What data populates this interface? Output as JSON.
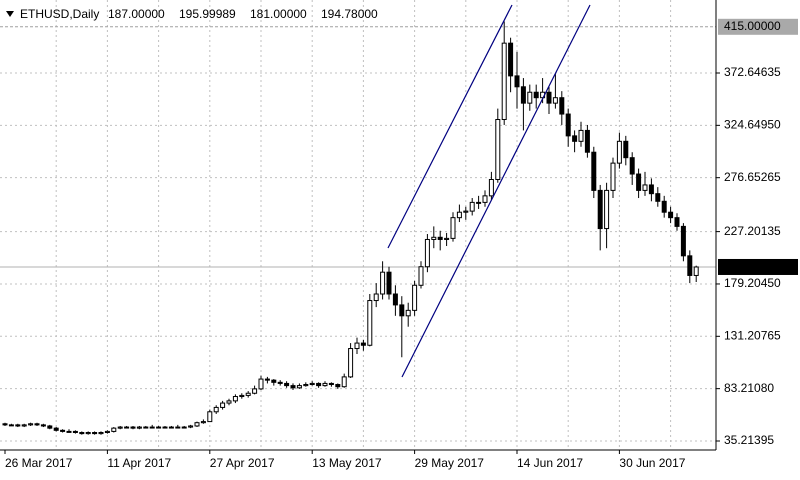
{
  "chart_data": {
    "type": "candlestick",
    "header": {
      "symbol": "ETHUSD,Daily",
      "ohlc_labels": [
        "187.00000",
        "195.99989",
        "181.00000",
        "194.78000"
      ]
    },
    "categories": [
      "26 Mar 2017",
      null,
      null,
      null,
      null,
      null,
      null,
      null,
      null,
      null,
      null,
      null,
      null,
      null,
      null,
      null,
      "11 Apr 2017",
      null,
      null,
      null,
      null,
      null,
      null,
      null,
      null,
      null,
      null,
      null,
      null,
      null,
      null,
      null,
      "27 Apr 2017",
      null,
      null,
      null,
      null,
      null,
      null,
      null,
      null,
      null,
      null,
      null,
      null,
      null,
      null,
      null,
      "13 May 2017",
      null,
      null,
      null,
      null,
      null,
      null,
      null,
      null,
      null,
      null,
      null,
      null,
      null,
      null,
      null,
      "29 May 2017",
      null,
      null,
      null,
      null,
      null,
      null,
      null,
      null,
      null,
      null,
      null,
      null,
      null,
      null,
      null,
      "14 Jun 2017",
      null,
      null,
      null,
      null,
      null,
      null,
      null,
      null,
      null,
      null,
      null,
      null,
      null,
      null,
      null,
      "30 Jun 2017",
      null,
      null,
      null,
      null,
      null,
      null,
      null,
      null,
      null,
      null,
      null,
      null
    ],
    "ohlc": [
      [
        51,
        52,
        49,
        50
      ],
      [
        50,
        51,
        49,
        50
      ],
      [
        50,
        51,
        48,
        49
      ],
      [
        49,
        51,
        48,
        50
      ],
      [
        50,
        52,
        49,
        51
      ],
      [
        51,
        52,
        49,
        50
      ],
      [
        50,
        51,
        48,
        49
      ],
      [
        49,
        50,
        46,
        47
      ],
      [
        47,
        48,
        44,
        45
      ],
      [
        45,
        46,
        43,
        44
      ],
      [
        44,
        46,
        43,
        44
      ],
      [
        44,
        45,
        42,
        43
      ],
      [
        43,
        44,
        41,
        42
      ],
      [
        42,
        44,
        41,
        43
      ],
      [
        43,
        44,
        41,
        42
      ],
      [
        42,
        44,
        41,
        43
      ],
      [
        43,
        45,
        42,
        44
      ],
      [
        44,
        48,
        43,
        47
      ],
      [
        47,
        49,
        46,
        48
      ],
      [
        48,
        49,
        47,
        48
      ],
      [
        48,
        49,
        46,
        47
      ],
      [
        47,
        49,
        46,
        48
      ],
      [
        48,
        49,
        47,
        48
      ],
      [
        48,
        50,
        47,
        48
      ],
      [
        48,
        49,
        47,
        48
      ],
      [
        48,
        49,
        47,
        48
      ],
      [
        48,
        49,
        47,
        48
      ],
      [
        48,
        50,
        47,
        48
      ],
      [
        48,
        49,
        47,
        48
      ],
      [
        48,
        50,
        47,
        49
      ],
      [
        49,
        53,
        48,
        52
      ],
      [
        52,
        55,
        51,
        53
      ],
      [
        53,
        64,
        53,
        62
      ],
      [
        62,
        68,
        60,
        66
      ],
      [
        66,
        72,
        64,
        70
      ],
      [
        70,
        74,
        68,
        72
      ],
      [
        72,
        78,
        70,
        76
      ],
      [
        76,
        79,
        74,
        77
      ],
      [
        77,
        81,
        75,
        79
      ],
      [
        79,
        86,
        78,
        83
      ],
      [
        83,
        95,
        82,
        92
      ],
      [
        92,
        94,
        88,
        91
      ],
      [
        91,
        92,
        86,
        89
      ],
      [
        89,
        91,
        86,
        88
      ],
      [
        88,
        90,
        84,
        86
      ],
      [
        86,
        88,
        82,
        84
      ],
      [
        84,
        88,
        83,
        86
      ],
      [
        86,
        89,
        85,
        87
      ],
      [
        87,
        90,
        86,
        88
      ],
      [
        88,
        89,
        84,
        86
      ],
      [
        86,
        90,
        85,
        88
      ],
      [
        88,
        89,
        85,
        87
      ],
      [
        87,
        88,
        83,
        85
      ],
      [
        85,
        97,
        84,
        94
      ],
      [
        94,
        125,
        93,
        120
      ],
      [
        120,
        130,
        115,
        125
      ],
      [
        125,
        128,
        118,
        123
      ],
      [
        123,
        170,
        122,
        164
      ],
      [
        164,
        180,
        158,
        170
      ],
      [
        170,
        200,
        165,
        190
      ],
      [
        190,
        195,
        165,
        170
      ],
      [
        170,
        178,
        150,
        160
      ],
      [
        160,
        168,
        112,
        150
      ],
      [
        150,
        162,
        140,
        155
      ],
      [
        155,
        182,
        150,
        178
      ],
      [
        178,
        200,
        175,
        195
      ],
      [
        195,
        225,
        190,
        220
      ],
      [
        220,
        232,
        212,
        222
      ],
      [
        222,
        228,
        210,
        220
      ],
      [
        220,
        226,
        214,
        221
      ],
      [
        221,
        245,
        218,
        240
      ],
      [
        240,
        252,
        236,
        245
      ],
      [
        245,
        250,
        238,
        246
      ],
      [
        246,
        258,
        242,
        254
      ],
      [
        254,
        260,
        248,
        254
      ],
      [
        254,
        265,
        250,
        260
      ],
      [
        260,
        282,
        256,
        275
      ],
      [
        275,
        340,
        272,
        330
      ],
      [
        330,
        420,
        325,
        400
      ],
      [
        400,
        405,
        355,
        370
      ],
      [
        370,
        392,
        340,
        360
      ],
      [
        360,
        368,
        320,
        345
      ],
      [
        345,
        362,
        338,
        355
      ],
      [
        355,
        362,
        340,
        350
      ],
      [
        350,
        368,
        345,
        355
      ],
      [
        355,
        360,
        335,
        345
      ],
      [
        345,
        372,
        340,
        350
      ],
      [
        350,
        356,
        325,
        335
      ],
      [
        335,
        340,
        305,
        315
      ],
      [
        315,
        320,
        300,
        310
      ],
      [
        310,
        328,
        305,
        320
      ],
      [
        320,
        325,
        295,
        300
      ],
      [
        300,
        305,
        258,
        265
      ],
      [
        265,
        270,
        210,
        230
      ],
      [
        230,
        272,
        212,
        265
      ],
      [
        265,
        295,
        258,
        290
      ],
      [
        290,
        318,
        285,
        310
      ],
      [
        310,
        315,
        288,
        295
      ],
      [
        295,
        300,
        270,
        280
      ],
      [
        280,
        285,
        258,
        265
      ],
      [
        265,
        282,
        260,
        270
      ],
      [
        270,
        276,
        255,
        262
      ],
      [
        262,
        268,
        250,
        255
      ],
      [
        255,
        260,
        240,
        245
      ],
      [
        245,
        250,
        235,
        240
      ],
      [
        240,
        244,
        228,
        232
      ],
      [
        232,
        235,
        200,
        205
      ],
      [
        205,
        210,
        180,
        187
      ],
      [
        187,
        195.99989,
        181,
        194.78
      ]
    ],
    "ylim": [
      26.96,
      439.58
    ],
    "yticks": [
      35.21395,
      {
        "value": 83.2108,
        "label": "83.21080"
      },
      131.20765,
      {
        "value": 179.2045,
        "label": "179.20450"
      },
      227.20135,
      276.65265,
      {
        "value": 324.6495,
        "label": "324.64950"
      },
      372.64635
    ],
    "level_line": {
      "value": 415,
      "label": "415.00000"
    },
    "current_price": {
      "value": 194.78,
      "label": "194.78000"
    },
    "grid": true
  }
}
